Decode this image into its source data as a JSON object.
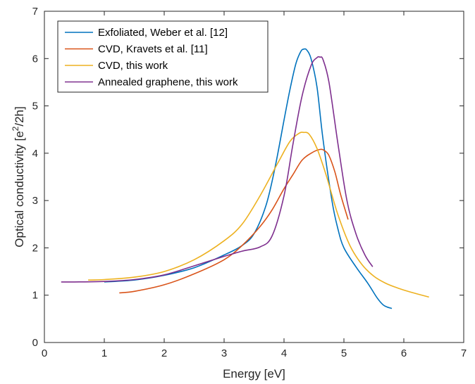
{
  "chart_data": {
    "type": "line",
    "xlabel": "Energy [eV]",
    "ylabel": {
      "base": "Optical conductivity [e",
      "sup": "2",
      "rest": "/2h]"
    },
    "xlim": [
      0,
      7
    ],
    "ylim": [
      0,
      7
    ],
    "xticks": [
      0,
      1,
      2,
      3,
      4,
      5,
      6,
      7
    ],
    "yticks": [
      0,
      1,
      2,
      3,
      4,
      5,
      6,
      7
    ],
    "grid": false,
    "legend_position": "top-left",
    "series": [
      {
        "name": "Exfoliated, Weber et al. [12]",
        "color": "#0072BD",
        "x": [
          1.0,
          1.5,
          2.0,
          2.5,
          3.0,
          3.3,
          3.5,
          3.7,
          3.85,
          4.0,
          4.1,
          4.2,
          4.28,
          4.33,
          4.38,
          4.45,
          4.55,
          4.65,
          4.8,
          4.9,
          5.0,
          5.2,
          5.4,
          5.55,
          5.65,
          5.72,
          5.8
        ],
        "y": [
          1.28,
          1.32,
          1.42,
          1.58,
          1.85,
          2.05,
          2.3,
          2.9,
          3.7,
          4.7,
          5.35,
          5.9,
          6.15,
          6.2,
          6.18,
          6.0,
          5.4,
          4.3,
          3.0,
          2.4,
          2.0,
          1.6,
          1.25,
          0.95,
          0.8,
          0.75,
          0.72
        ]
      },
      {
        "name": "CVD, Kravets et al. [11]",
        "color": "#D95319",
        "x": [
          1.25,
          1.5,
          2.0,
          2.5,
          3.0,
          3.3,
          3.6,
          3.8,
          4.0,
          4.15,
          4.3,
          4.45,
          4.6,
          4.68,
          4.75,
          4.85,
          4.95,
          5.07
        ],
        "y": [
          1.05,
          1.08,
          1.22,
          1.45,
          1.75,
          2.05,
          2.45,
          2.8,
          3.25,
          3.55,
          3.85,
          4.0,
          4.08,
          4.05,
          3.95,
          3.6,
          3.1,
          2.6
        ]
      },
      {
        "name": "CVD, this work",
        "color": "#EDB120",
        "x": [
          0.73,
          1.0,
          1.5,
          2.0,
          2.5,
          3.0,
          3.3,
          3.6,
          3.9,
          4.1,
          4.25,
          4.33,
          4.42,
          4.55,
          4.7,
          4.9,
          5.1,
          5.3,
          5.5,
          5.7,
          5.9,
          6.1,
          6.42
        ],
        "y": [
          1.32,
          1.33,
          1.38,
          1.5,
          1.75,
          2.15,
          2.5,
          3.1,
          3.8,
          4.25,
          4.42,
          4.44,
          4.4,
          4.1,
          3.55,
          2.7,
          2.05,
          1.65,
          1.4,
          1.25,
          1.15,
          1.07,
          0.96
        ]
      },
      {
        "name": "Annealed graphene, this work",
        "color": "#7E2F8E",
        "x": [
          0.28,
          0.5,
          1.0,
          1.5,
          2.0,
          2.5,
          3.0,
          3.3,
          3.6,
          3.8,
          4.0,
          4.15,
          4.3,
          4.45,
          4.55,
          4.6,
          4.65,
          4.75,
          4.9,
          5.05,
          5.2,
          5.35,
          5.48
        ],
        "y": [
          1.28,
          1.28,
          1.29,
          1.33,
          1.43,
          1.62,
          1.82,
          1.93,
          2.02,
          2.25,
          3.1,
          4.2,
          5.2,
          5.85,
          6.02,
          6.03,
          5.98,
          5.5,
          4.2,
          3.0,
          2.3,
          1.85,
          1.6
        ]
      }
    ]
  }
}
